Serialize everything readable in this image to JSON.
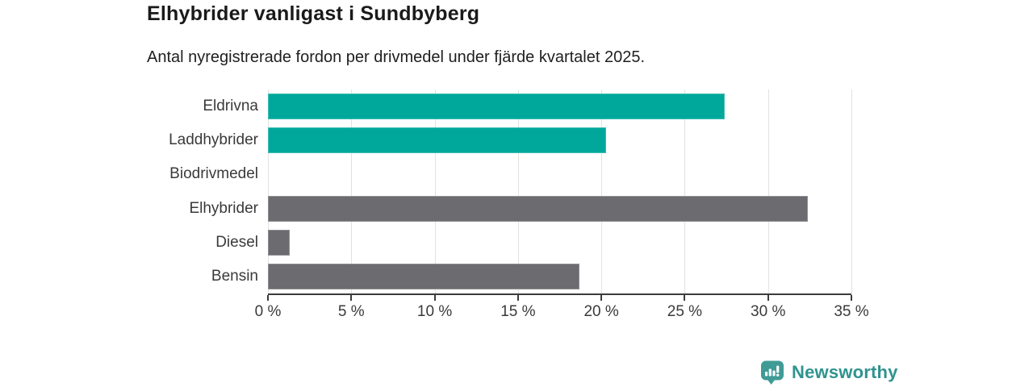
{
  "chart_data": {
    "type": "bar",
    "orientation": "horizontal",
    "title": "Elhybrider vanligast i Sundbyberg",
    "subtitle": "Antal nyregistrerade fordon per drivmedel under fjärde kvartalet 2025.",
    "categories": [
      "Eldrivna",
      "Laddhybrider",
      "Biodrivmedel",
      "Elhybrider",
      "Diesel",
      "Bensin"
    ],
    "values": [
      27.4,
      20.3,
      0,
      32.4,
      1.3,
      18.7
    ],
    "unit": "%",
    "bar_colors": [
      "#00a89b",
      "#00a89b",
      "#00a89b",
      "#6b6b70",
      "#6b6b70",
      "#6b6b70"
    ],
    "xlabel": "",
    "ylabel": "",
    "xlim": [
      0,
      35
    ],
    "x_tick_values": [
      0,
      5,
      10,
      15,
      20,
      25,
      30,
      35
    ],
    "x_tick_labels": [
      "0 %",
      "5 %",
      "10 %",
      "15 %",
      "20 %",
      "25 %",
      "30 %",
      "35 %"
    ],
    "grid": true,
    "legend": null
  },
  "logo": {
    "text": "Newsworthy",
    "icon": "newsworthy-chart-bubble-icon"
  },
  "colors": {
    "teal_bar": "#00a89b",
    "gray_bar": "#6b6b70",
    "axis": "#3c3c3c",
    "gridline": "#e2e2e2",
    "title_text": "#1a1a1a",
    "label_text": "#3a3a3a",
    "logo_teal": "#2f938e",
    "background": "#ffffff"
  }
}
